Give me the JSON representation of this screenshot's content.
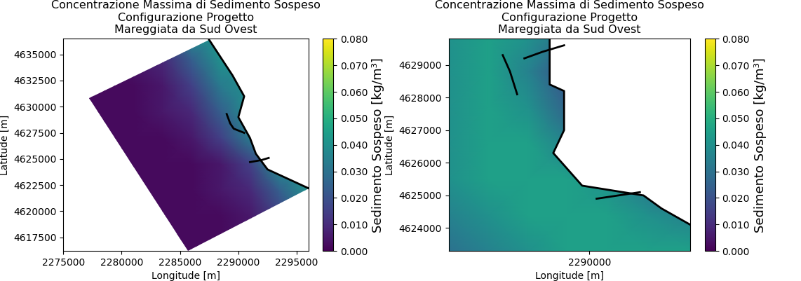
{
  "chart_data": [
    {
      "type": "heatmap",
      "title": "Concentrazione Massima di Sedimento Sospeso\nConfigurazione Progetto\nMareggiata da Sud Ovest",
      "x_label": "Longitude [m]",
      "y_label": "Latitude [m]",
      "xlim": [
        2275000,
        2296000
      ],
      "ylim": [
        4616200,
        4636500
      ],
      "xticks": [
        2275000,
        2280000,
        2285000,
        2290000,
        2295000
      ],
      "yticks": [
        4617500,
        4620000,
        4622500,
        4625000,
        4627500,
        4630000,
        4632500,
        4635000
      ],
      "x": [
        2276000,
        2278500,
        2281000,
        2283500,
        2286000,
        2288500,
        2291000,
        2293500,
        2296000
      ],
      "y": [
        4616000,
        4619500,
        4622000,
        4624500,
        4627000,
        4629500,
        4632000,
        4634500,
        4637000
      ],
      "cells": [
        [
          0.002,
          0.002,
          0.002,
          0.002,
          0.002,
          0.002,
          0.005,
          0.009,
          0.024
        ],
        [
          0.002,
          0.002,
          0.002,
          0.002,
          0.002,
          0.002,
          0.005,
          0.015,
          0.033
        ],
        [
          0.002,
          0.002,
          0.002,
          0.002,
          0.002,
          0.005,
          0.009,
          0.024,
          0.04
        ],
        [
          0.002,
          0.002,
          0.002,
          0.002,
          0.002,
          0.005,
          0.015,
          0.04,
          0.04
        ],
        [
          0.002,
          0.002,
          0.002,
          0.002,
          0.005,
          0.015,
          0.033,
          0.04,
          0.04
        ],
        [
          0.002,
          0.002,
          0.002,
          0.005,
          0.009,
          0.024,
          0.04,
          0.04,
          0.04
        ],
        [
          0.002,
          0.002,
          0.002,
          0.005,
          0.015,
          0.033,
          0.04,
          0.04,
          0.04
        ],
        [
          0.002,
          0.002,
          0.005,
          0.009,
          0.024,
          0.04,
          0.04,
          0.04,
          0.04
        ],
        [
          0.002,
          0.002,
          0.005,
          0.015,
          0.04,
          0.04,
          0.04,
          0.04,
          0.04
        ]
      ],
      "domain": {
        "x": [
          2277200,
          2287500,
          2289500,
          2290500,
          2290000,
          2291000,
          2291500,
          2292500,
          2296000,
          2285700
        ],
        "y": [
          4630800,
          4636400,
          4633000,
          4631000,
          4629000,
          4627000,
          4625500,
          4624000,
          4622200,
          4616200
        ]
      },
      "coastline": [
        {
          "x": [
            2287500,
            2289500,
            2290500,
            2290000,
            2291000,
            2291500,
            2292500,
            2296000
          ],
          "y": [
            4636400,
            4633000,
            4631000,
            4629000,
            4627000,
            4625500,
            4624000,
            4622200
          ]
        },
        {
          "x": [
            2289000,
            2289300,
            2289600,
            2290500
          ],
          "y": [
            4629300,
            4628400,
            4627900,
            4627500
          ]
        },
        {
          "x": [
            2291000,
            2292000,
            2292600
          ],
          "y": [
            4624700,
            4624900,
            4625100
          ]
        }
      ],
      "colorbar": {
        "label": "Sedimento Sospeso [kg/m³]",
        "range": [
          0,
          0.08
        ],
        "ticks": [
          {
            "value": 0,
            "label": "0.000"
          },
          {
            "value": 0.01,
            "label": "0.010"
          },
          {
            "value": 0.02,
            "label": "0.020"
          },
          {
            "value": 0.03,
            "label": "0.030"
          },
          {
            "value": 0.04,
            "label": "0.040"
          },
          {
            "value": 0.05,
            "label": "0.050"
          },
          {
            "value": 0.06,
            "label": "0.060"
          },
          {
            "value": 0.07,
            "label": "0.070"
          },
          {
            "value": 0.08,
            "label": "0.080"
          }
        ]
      }
    },
    {
      "type": "heatmap",
      "title": "Concentrazione Massima di Sedimento Sospeso\nConfigurazione Progetto\nMareggiata da Sud Ovest",
      "x_label": "Longitude [m]",
      "y_label": "Latitude [m]",
      "xlim": [
        2286100,
        2292800
      ],
      "ylim": [
        4623300,
        4629800
      ],
      "xticks": [
        2290000
      ],
      "yticks": [
        4624000,
        4625000,
        4626000,
        4627000,
        4628000,
        4629000
      ],
      "x": [
        2286100,
        2287200,
        2288300,
        2289400,
        2290500,
        2291600,
        2292800
      ],
      "y": [
        4623300,
        4624400,
        4625500,
        4626600,
        4627700,
        4628800,
        4629800
      ],
      "cells": [
        [
          0.03,
          0.035,
          0.04,
          0.045,
          0.045,
          0.045,
          0.045
        ],
        [
          0.035,
          0.04,
          0.045,
          0.045,
          0.045,
          0.04,
          0.035
        ],
        [
          0.04,
          0.045,
          0.045,
          0.045,
          0.04,
          0.03,
          0.02
        ],
        [
          0.04,
          0.045,
          0.045,
          0.035,
          0.02,
          0.01,
          0.01
        ],
        [
          0.04,
          0.045,
          0.04,
          0.025,
          0.01,
          0.01,
          0.01
        ],
        [
          0.04,
          0.045,
          0.035,
          0.02,
          0.015,
          0.01,
          0.01
        ],
        [
          0.04,
          0.045,
          0.04,
          0.03,
          0.02,
          0.015,
          0.015
        ]
      ],
      "domain": {
        "x": [
          2286100,
          2286100,
          2288900,
          2288900,
          2289300,
          2289300,
          2289000,
          2289800,
          2291500,
          2292000,
          2292800,
          2292800
        ],
        "y": [
          4623300,
          4629800,
          4629800,
          4628400,
          4628200,
          4627000,
          4626300,
          4625300,
          4625000,
          4624600,
          4624100,
          4623300
        ]
      },
      "coastline": [
        {
          "x": [
            2288900,
            2288900,
            2289300,
            2289300,
            2289000,
            2289800,
            2291500,
            2292000,
            2292800
          ],
          "y": [
            4629800,
            4628400,
            4628200,
            4627000,
            4626300,
            4625300,
            4625000,
            4624600,
            4624100
          ]
        },
        {
          "x": [
            2287600,
            2287800,
            2288000
          ],
          "y": [
            4629300,
            4628800,
            4628100
          ]
        },
        {
          "x": [
            2288200,
            2288700,
            2289300
          ],
          "y": [
            4629200,
            4629400,
            4629600
          ]
        },
        {
          "x": [
            2290200,
            2290800,
            2291400
          ],
          "y": [
            4624900,
            4625000,
            4625100
          ]
        }
      ],
      "colorbar": {
        "label": "Sedimento Sospeso [kg/m³]",
        "range": [
          0,
          0.08
        ],
        "ticks": [
          {
            "value": 0,
            "label": "0.000"
          },
          {
            "value": 0.01,
            "label": "0.010"
          },
          {
            "value": 0.02,
            "label": "0.020"
          },
          {
            "value": 0.03,
            "label": "0.030"
          },
          {
            "value": 0.04,
            "label": "0.040"
          },
          {
            "value": 0.05,
            "label": "0.050"
          },
          {
            "value": 0.06,
            "label": "0.060"
          },
          {
            "value": 0.07,
            "label": "0.070"
          },
          {
            "value": 0.08,
            "label": "0.080"
          }
        ]
      }
    }
  ]
}
